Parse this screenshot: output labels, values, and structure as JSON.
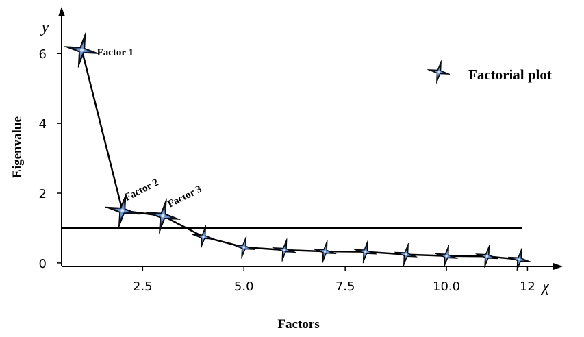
{
  "chart_data": {
    "type": "line",
    "title": "",
    "xlabel": "Factors",
    "ylabel": "Eigenvalue",
    "x_axis_symbol": "χ",
    "y_axis_symbol": "y",
    "xlim": [
      0.5,
      12.5
    ],
    "ylim": [
      -0.1,
      7.3
    ],
    "x_ticks": [
      {
        "value": 2.5,
        "label": "2.5"
      },
      {
        "value": 5.0,
        "label": "5.0"
      },
      {
        "value": 7.5,
        "label": "7.5"
      },
      {
        "value": 10.0,
        "label": "10.0"
      },
      {
        "value": 12,
        "label": "12"
      }
    ],
    "y_ticks": [
      {
        "value": 0,
        "label": "0"
      },
      {
        "value": 2,
        "label": "2"
      },
      {
        "value": 4,
        "label": "4"
      },
      {
        "value": 6,
        "label": "6"
      }
    ],
    "grid": false,
    "legend_position": "top-right",
    "series": [
      {
        "name": "Factorial plot",
        "x": [
          1,
          2,
          3,
          4,
          5,
          6,
          7,
          8,
          9,
          10,
          11,
          11.8
        ],
        "y": [
          6.1,
          1.5,
          1.35,
          0.75,
          0.45,
          0.37,
          0.33,
          0.32,
          0.24,
          0.2,
          0.19,
          0.1
        ]
      }
    ],
    "reference_line": {
      "y": 1.0
    },
    "annotations": [
      {
        "text": "Factor 1",
        "x": 1,
        "y": 6.1
      },
      {
        "text": "Factor 2",
        "x": 2,
        "y": 1.5
      },
      {
        "text": "Factor 3",
        "x": 3,
        "y": 1.35
      }
    ],
    "colors": {
      "line": "#000000",
      "marker_dark": "#0d1424",
      "marker_highlight": "#6f9ad8",
      "axis": "#000000"
    }
  }
}
